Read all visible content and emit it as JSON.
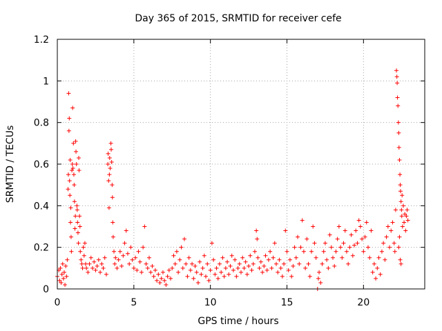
{
  "chart_data": {
    "type": "scatter",
    "title": "Day 365 of 2015, SRMTID for receiver cefe",
    "xlabel": "GPS time / hours",
    "ylabel": "SRMTID / TECUs",
    "xlim": [
      0,
      24
    ],
    "ylim": [
      0,
      1.2
    ],
    "xticks": [
      0,
      5,
      10,
      15,
      20
    ],
    "yticks": [
      0,
      0.2,
      0.4,
      0.6,
      0.8,
      1,
      1.2
    ],
    "xtick_labels": [
      "0",
      "5",
      "10",
      "15",
      "20"
    ],
    "ytick_labels": [
      "0",
      "0.2",
      "0.4",
      "0.6",
      "0.8",
      "1",
      "1.2"
    ],
    "grid": true,
    "marker": "+",
    "series": [
      {
        "name": "SRMTID",
        "color": "#ff0000",
        "points": [
          [
            0.0,
            0.06
          ],
          [
            0.1,
            0.09
          ],
          [
            0.15,
            0.04
          ],
          [
            0.2,
            0.1
          ],
          [
            0.25,
            0.03
          ],
          [
            0.3,
            0.07
          ],
          [
            0.35,
            0.12
          ],
          [
            0.4,
            0.05
          ],
          [
            0.45,
            0.08
          ],
          [
            0.5,
            0.02
          ],
          [
            0.55,
            0.11
          ],
          [
            0.6,
            0.06
          ],
          [
            0.65,
            0.14
          ],
          [
            0.7,
            0.48
          ],
          [
            0.72,
            0.55
          ],
          [
            0.74,
            0.94
          ],
          [
            0.76,
            0.76
          ],
          [
            0.78,
            0.82
          ],
          [
            0.8,
            0.52
          ],
          [
            0.82,
            0.45
          ],
          [
            0.84,
            0.62
          ],
          [
            0.86,
            0.32
          ],
          [
            0.88,
            0.39
          ],
          [
            0.9,
            0.25
          ],
          [
            0.92,
            0.18
          ],
          [
            0.95,
            0.57
          ],
          [
            0.98,
            0.6
          ],
          [
            1.0,
            0.87
          ],
          [
            1.02,
            0.58
          ],
          [
            1.05,
            0.7
          ],
          [
            1.08,
            0.55
          ],
          [
            1.1,
            0.5
          ],
          [
            1.12,
            0.42
          ],
          [
            1.15,
            0.29
          ],
          [
            1.18,
            0.35
          ],
          [
            1.2,
            0.71
          ],
          [
            1.22,
            0.66
          ],
          [
            1.25,
            0.6
          ],
          [
            1.28,
            0.4
          ],
          [
            1.3,
            0.38
          ],
          [
            1.32,
            0.32
          ],
          [
            1.35,
            0.27
          ],
          [
            1.38,
            0.22
          ],
          [
            1.4,
            0.63
          ],
          [
            1.42,
            0.57
          ],
          [
            1.45,
            0.35
          ],
          [
            1.48,
            0.3
          ],
          [
            1.5,
            0.18
          ],
          [
            1.55,
            0.14
          ],
          [
            1.6,
            0.12
          ],
          [
            1.65,
            0.1
          ],
          [
            1.7,
            0.2
          ],
          [
            1.75,
            0.16
          ],
          [
            1.8,
            0.22
          ],
          [
            1.85,
            0.12
          ],
          [
            1.9,
            0.1
          ],
          [
            2.0,
            0.08
          ],
          [
            2.1,
            0.12
          ],
          [
            2.2,
            0.15
          ],
          [
            2.3,
            0.1
          ],
          [
            2.4,
            0.13
          ],
          [
            2.5,
            0.09
          ],
          [
            2.6,
            0.11
          ],
          [
            2.7,
            0.14
          ],
          [
            2.8,
            0.08
          ],
          [
            2.9,
            0.12
          ],
          [
            3.0,
            0.1
          ],
          [
            3.1,
            0.15
          ],
          [
            3.2,
            0.07
          ],
          [
            3.3,
            0.6
          ],
          [
            3.32,
            0.65
          ],
          [
            3.35,
            0.52
          ],
          [
            3.38,
            0.39
          ],
          [
            3.4,
            0.55
          ],
          [
            3.42,
            0.63
          ],
          [
            3.45,
            0.58
          ],
          [
            3.5,
            0.7
          ],
          [
            3.52,
            0.67
          ],
          [
            3.55,
            0.61
          ],
          [
            3.58,
            0.5
          ],
          [
            3.6,
            0.44
          ],
          [
            3.62,
            0.32
          ],
          [
            3.65,
            0.25
          ],
          [
            3.7,
            0.18
          ],
          [
            3.75,
            0.12
          ],
          [
            3.8,
            0.15
          ],
          [
            3.9,
            0.1
          ],
          [
            4.0,
            0.14
          ],
          [
            4.1,
            0.18
          ],
          [
            4.2,
            0.11
          ],
          [
            4.3,
            0.16
          ],
          [
            4.4,
            0.22
          ],
          [
            4.5,
            0.28
          ],
          [
            4.6,
            0.17
          ],
          [
            4.7,
            0.12
          ],
          [
            4.8,
            0.2
          ],
          [
            4.9,
            0.14
          ],
          [
            5.0,
            0.1
          ],
          [
            5.1,
            0.15
          ],
          [
            5.2,
            0.09
          ],
          [
            5.3,
            0.18
          ],
          [
            5.4,
            0.13
          ],
          [
            5.5,
            0.08
          ],
          [
            5.6,
            0.2
          ],
          [
            5.7,
            0.3
          ],
          [
            5.8,
            0.12
          ],
          [
            5.9,
            0.1
          ],
          [
            6.0,
            0.15
          ],
          [
            6.1,
            0.08
          ],
          [
            6.2,
            0.11
          ],
          [
            6.3,
            0.06
          ],
          [
            6.4,
            0.09
          ],
          [
            6.5,
            0.04
          ],
          [
            6.6,
            0.07
          ],
          [
            6.7,
            0.03
          ],
          [
            6.8,
            0.05
          ],
          [
            6.9,
            0.08
          ],
          [
            7.0,
            0.04
          ],
          [
            7.1,
            0.02
          ],
          [
            7.2,
            0.06
          ],
          [
            7.3,
            0.09
          ],
          [
            7.4,
            0.05
          ],
          [
            7.5,
            0.1
          ],
          [
            7.6,
            0.16
          ],
          [
            7.7,
            0.12
          ],
          [
            7.8,
            0.18
          ],
          [
            7.9,
            0.08
          ],
          [
            8.0,
            0.14
          ],
          [
            8.1,
            0.2
          ],
          [
            8.2,
            0.1
          ],
          [
            8.3,
            0.24
          ],
          [
            8.4,
            0.12
          ],
          [
            8.5,
            0.06
          ],
          [
            8.6,
            0.15
          ],
          [
            8.7,
            0.09
          ],
          [
            8.8,
            0.12
          ],
          [
            8.9,
            0.05
          ],
          [
            9.0,
            0.11
          ],
          [
            9.1,
            0.08
          ],
          [
            9.2,
            0.03
          ],
          [
            9.3,
            0.13
          ],
          [
            9.4,
            0.07
          ],
          [
            9.5,
            0.1
          ],
          [
            9.6,
            0.16
          ],
          [
            9.7,
            0.06
          ],
          [
            9.8,
            0.12
          ],
          [
            9.9,
            0.04
          ],
          [
            10.0,
            0.09
          ],
          [
            10.1,
            0.22
          ],
          [
            10.2,
            0.14
          ],
          [
            10.3,
            0.07
          ],
          [
            10.4,
            0.1
          ],
          [
            10.5,
            0.05
          ],
          [
            10.6,
            0.12
          ],
          [
            10.7,
            0.08
          ],
          [
            10.8,
            0.15
          ],
          [
            10.9,
            0.06
          ],
          [
            11.0,
            0.1
          ],
          [
            11.1,
            0.13
          ],
          [
            11.2,
            0.07
          ],
          [
            11.3,
            0.11
          ],
          [
            11.4,
            0.16
          ],
          [
            11.5,
            0.09
          ],
          [
            11.6,
            0.14
          ],
          [
            11.7,
            0.06
          ],
          [
            11.8,
            0.1
          ],
          [
            11.9,
            0.12
          ],
          [
            12.0,
            0.08
          ],
          [
            12.1,
            0.15
          ],
          [
            12.2,
            0.1
          ],
          [
            12.3,
            0.13
          ],
          [
            12.4,
            0.07
          ],
          [
            12.5,
            0.11
          ],
          [
            12.6,
            0.16
          ],
          [
            12.7,
            0.09
          ],
          [
            12.8,
            0.12
          ],
          [
            12.9,
            0.18
          ],
          [
            13.0,
            0.28
          ],
          [
            13.05,
            0.24
          ],
          [
            13.1,
            0.15
          ],
          [
            13.2,
            0.1
          ],
          [
            13.3,
            0.13
          ],
          [
            13.4,
            0.08
          ],
          [
            13.5,
            0.11
          ],
          [
            13.6,
            0.16
          ],
          [
            13.7,
            0.09
          ],
          [
            13.8,
            0.14
          ],
          [
            13.9,
            0.18
          ],
          [
            14.0,
            0.1
          ],
          [
            14.1,
            0.15
          ],
          [
            14.2,
            0.22
          ],
          [
            14.3,
            0.12
          ],
          [
            14.4,
            0.08
          ],
          [
            14.5,
            0.14
          ],
          [
            14.6,
            0.1
          ],
          [
            14.7,
            0.06
          ],
          [
            14.8,
            0.12
          ],
          [
            14.9,
            0.28
          ],
          [
            15.0,
            0.18
          ],
          [
            15.1,
            0.09
          ],
          [
            15.2,
            0.14
          ],
          [
            15.3,
            0.06
          ],
          [
            15.4,
            0.11
          ],
          [
            15.5,
            0.2
          ],
          [
            15.6,
            0.15
          ],
          [
            15.7,
            0.25
          ],
          [
            15.8,
            0.12
          ],
          [
            15.9,
            0.2
          ],
          [
            16.0,
            0.33
          ],
          [
            16.1,
            0.18
          ],
          [
            16.2,
            0.1
          ],
          [
            16.3,
            0.24
          ],
          [
            16.4,
            0.12
          ],
          [
            16.5,
            0.06
          ],
          [
            16.6,
            0.18
          ],
          [
            16.7,
            0.3
          ],
          [
            16.8,
            0.22
          ],
          [
            16.9,
            0.15
          ],
          [
            17.0,
            0.0
          ],
          [
            17.05,
            0.05
          ],
          [
            17.1,
            0.08
          ],
          [
            17.2,
            0.03
          ],
          [
            17.3,
            0.12
          ],
          [
            17.4,
            0.18
          ],
          [
            17.5,
            0.22
          ],
          [
            17.6,
            0.14
          ],
          [
            17.7,
            0.1
          ],
          [
            17.8,
            0.26
          ],
          [
            17.9,
            0.2
          ],
          [
            18.0,
            0.15
          ],
          [
            18.1,
            0.11
          ],
          [
            18.2,
            0.18
          ],
          [
            18.3,
            0.24
          ],
          [
            18.4,
            0.3
          ],
          [
            18.5,
            0.2
          ],
          [
            18.6,
            0.15
          ],
          [
            18.7,
            0.22
          ],
          [
            18.8,
            0.28
          ],
          [
            18.9,
            0.18
          ],
          [
            19.0,
            0.12
          ],
          [
            19.1,
            0.2
          ],
          [
            19.2,
            0.26
          ],
          [
            19.3,
            0.16
          ],
          [
            19.4,
            0.21
          ],
          [
            19.5,
            0.28
          ],
          [
            19.6,
            0.22
          ],
          [
            19.7,
            0.33
          ],
          [
            19.8,
            0.3
          ],
          [
            19.9,
            0.24
          ],
          [
            20.0,
            0.18
          ],
          [
            20.1,
            0.25
          ],
          [
            20.2,
            0.32
          ],
          [
            20.3,
            0.2
          ],
          [
            20.4,
            0.15
          ],
          [
            20.5,
            0.28
          ],
          [
            20.6,
            0.08
          ],
          [
            20.7,
            0.12
          ],
          [
            20.8,
            0.05
          ],
          [
            20.9,
            0.1
          ],
          [
            21.0,
            0.15
          ],
          [
            21.1,
            0.07
          ],
          [
            21.2,
            0.18
          ],
          [
            21.3,
            0.22
          ],
          [
            21.4,
            0.14
          ],
          [
            21.5,
            0.25
          ],
          [
            21.6,
            0.3
          ],
          [
            21.7,
            0.2
          ],
          [
            21.8,
            0.28
          ],
          [
            21.9,
            0.32
          ],
          [
            22.0,
            0.22
          ],
          [
            22.05,
            0.18
          ],
          [
            22.1,
            0.38
          ],
          [
            22.15,
            1.05
          ],
          [
            22.18,
            1.02
          ],
          [
            22.2,
            0.99
          ],
          [
            22.22,
            0.92
          ],
          [
            22.25,
            0.88
          ],
          [
            22.28,
            0.8
          ],
          [
            22.3,
            0.75
          ],
          [
            22.32,
            0.68
          ],
          [
            22.35,
            0.62
          ],
          [
            22.38,
            0.55
          ],
          [
            22.4,
            0.5
          ],
          [
            22.42,
            0.47
          ],
          [
            22.45,
            0.42
          ],
          [
            22.48,
            0.38
          ],
          [
            22.5,
            0.35
          ],
          [
            22.52,
            0.45
          ],
          [
            22.55,
            0.3
          ],
          [
            22.6,
            0.4
          ],
          [
            22.65,
            0.32
          ],
          [
            22.7,
            0.36
          ],
          [
            22.75,
            0.28
          ],
          [
            22.8,
            0.35
          ],
          [
            22.85,
            0.38
          ],
          [
            22.9,
            0.33
          ],
          [
            22.4,
            0.14
          ],
          [
            22.45,
            0.12
          ],
          [
            22.3,
            0.2
          ],
          [
            22.35,
            0.25
          ]
        ]
      }
    ]
  }
}
